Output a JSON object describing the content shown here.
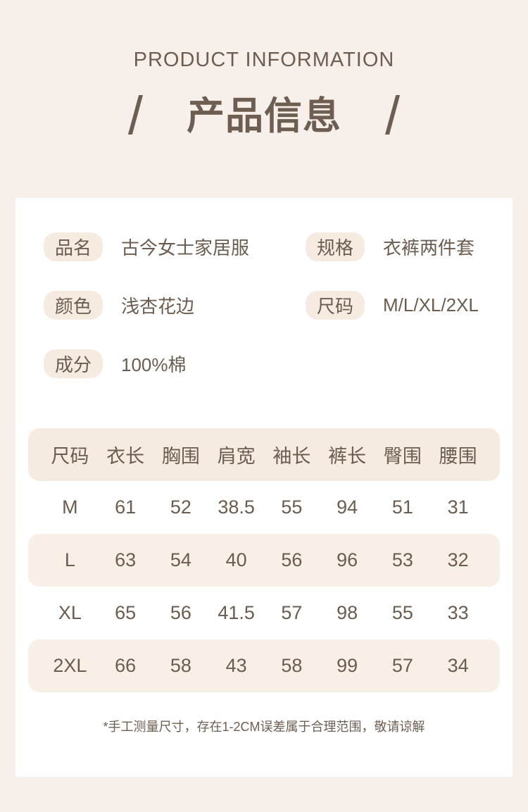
{
  "colors": {
    "page_bg": "#f7efe9",
    "card_bg": "#ffffff",
    "accent_bg": "#f6ebe1",
    "alt_row_bg": "#f8efe7",
    "text": "#6c5c4f"
  },
  "header": {
    "subtitle_en": "PRODUCT INFORMATION",
    "title_cn": "产品信息",
    "slash": "/"
  },
  "attributes": [
    {
      "label": "品名",
      "value": "古今女士家居服"
    },
    {
      "label": "规格",
      "value": "衣裤两件套"
    },
    {
      "label": "颜色",
      "value": "浅杏花边"
    },
    {
      "label": "尺码",
      "value": "M/L/XL/2XL"
    },
    {
      "label": "成分",
      "value": "100%棉"
    }
  ],
  "size_table": {
    "columns": [
      "尺码",
      "衣长",
      "胸围",
      "肩宽",
      "袖长",
      "裤长",
      "臀围",
      "腰围"
    ],
    "rows": [
      [
        "M",
        "61",
        "52",
        "38.5",
        "55",
        "94",
        "51",
        "31"
      ],
      [
        "L",
        "63",
        "54",
        "40",
        "56",
        "96",
        "53",
        "32"
      ],
      [
        "XL",
        "65",
        "56",
        "41.5",
        "57",
        "98",
        "55",
        "33"
      ],
      [
        "2XL",
        "66",
        "58",
        "43",
        "58",
        "99",
        "57",
        "34"
      ]
    ]
  },
  "footnote": "*手工测量尺寸，存在1-2CM误差属于合理范围，敬请谅解"
}
